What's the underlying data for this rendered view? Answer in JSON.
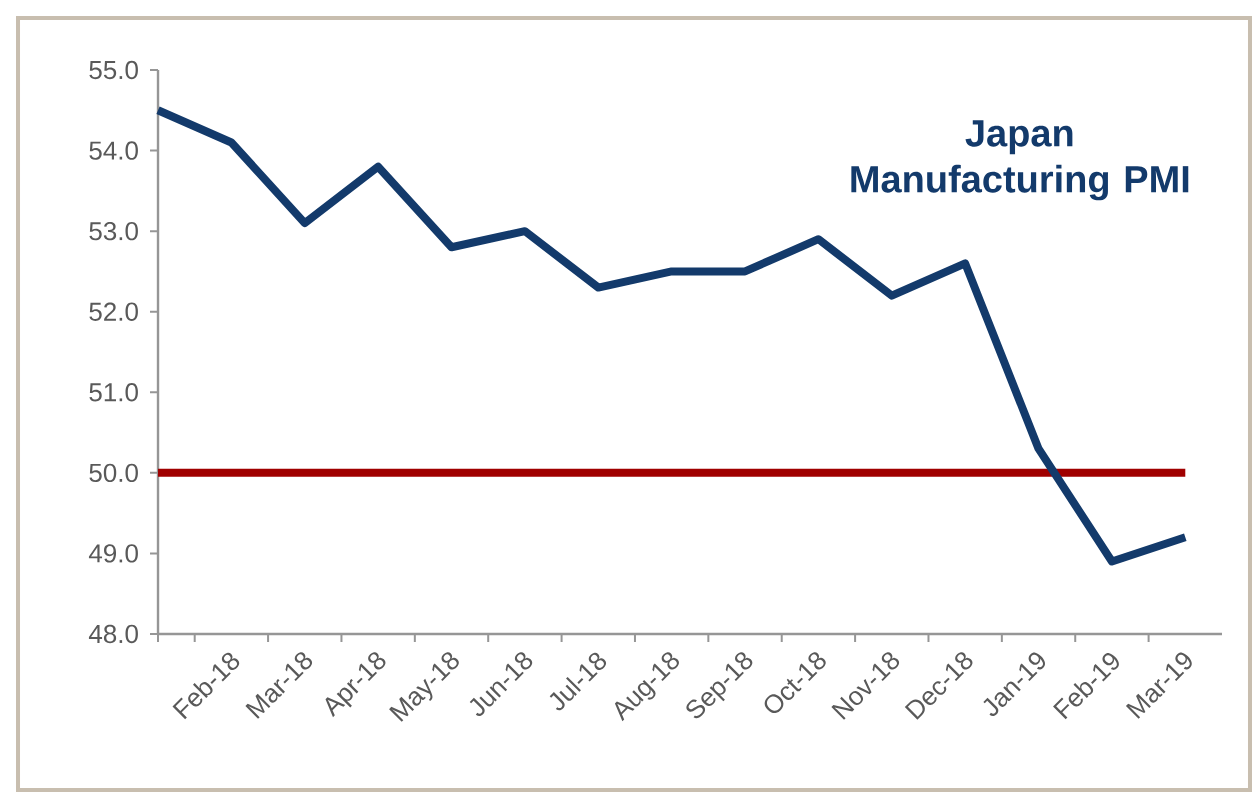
{
  "chart_data": {
    "type": "line",
    "title": "Japan Manufacturing PMI",
    "categories": [
      null,
      "Feb-18",
      "Mar-18",
      "Apr-18",
      "May-18",
      "Jun-18",
      "Jul-18",
      "Aug-18",
      "Sep-18",
      "Oct-18",
      "Nov-18",
      "Dec-18",
      "Jan-19",
      "Feb-19",
      "Mar-19"
    ],
    "series": [
      {
        "color": "#133a6b",
        "values": [
          54.5,
          54.1,
          53.1,
          53.8,
          52.8,
          53.0,
          52.3,
          52.5,
          52.5,
          52.9,
          52.2,
          52.6,
          50.3,
          48.9,
          49.2
        ]
      }
    ],
    "ylim": [
      48,
      55
    ],
    "yticks": [
      {
        "value": 48,
        "label": "48.0"
      },
      {
        "value": 49,
        "label": "49.0"
      },
      {
        "value": 50,
        "label": "50.0"
      },
      {
        "value": 51,
        "label": "51.0"
      },
      {
        "value": 52,
        "label": "52.0"
      },
      {
        "value": 53,
        "label": "53.0"
      },
      {
        "value": 54,
        "label": "54.0"
      },
      {
        "value": 55,
        "label": "55.0"
      }
    ],
    "ref_lines": [
      {
        "axis": "y",
        "value": 50,
        "color": "#a00000"
      }
    ],
    "grid": false,
    "marker": "none",
    "line_style": "solid"
  }
}
